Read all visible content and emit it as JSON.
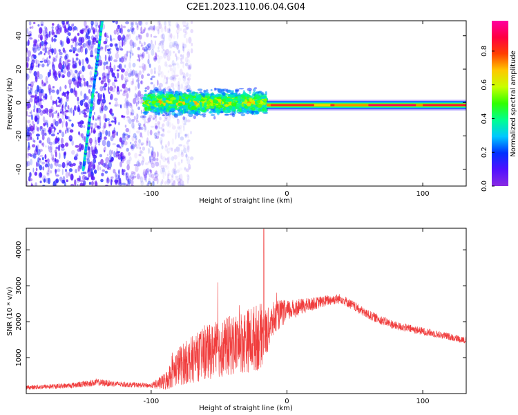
{
  "figure_title": "C2E1.2023.110.06.04.G04",
  "colors": {
    "snr_line": "#f03c3c",
    "axis": "#000000",
    "background": "#ffffff"
  },
  "colorbar": {
    "label": "Normalized spectral amplitude",
    "ticks": [
      "0.0",
      "0.2",
      "0.4",
      "0.6",
      "0.8"
    ],
    "tick_values": [
      0.0,
      0.2,
      0.4,
      0.6,
      0.8
    ],
    "range": [
      0,
      0.98
    ],
    "colormap": "gist_rainbow_r (purple → blue → cyan → green → yellow → orange → red → magenta)"
  },
  "chart_data": [
    {
      "type": "heatmap",
      "title": "C2E1.2023.110.06.04.G04",
      "xlabel": "Height of straight line (km)",
      "ylabel": "Frequency (Hz)",
      "xlim": [
        -192,
        132
      ],
      "ylim": [
        -50,
        49
      ],
      "x_ticks": [
        -100,
        0,
        100
      ],
      "y_ticks": [
        -40,
        -20,
        0,
        20,
        40
      ],
      "grid": false,
      "value_label": "Normalized spectral amplitude",
      "features": [
        {
          "name": "broadband noise",
          "x_range": [
            -192,
            -95
          ],
          "freq_range": [
            -50,
            49
          ],
          "amplitude": 0.15
        },
        {
          "name": "tilted streak",
          "x_start": -150,
          "freq_start": -40,
          "x_end": -136,
          "freq_end": 49,
          "amplitude": 0.3
        },
        {
          "name": "turbulent band",
          "x_range": [
            -105,
            -15
          ],
          "freq_center": 0,
          "freq_halfwidth": 7,
          "amplitude": 0.45
        },
        {
          "name": "steady tone",
          "x_range": [
            -15,
            132
          ],
          "freq_center": -1.5,
          "freq_halfwidth": 2,
          "amplitude": 0.95
        }
      ]
    },
    {
      "type": "line",
      "xlabel": "Height of straight line (km)",
      "ylabel": "SNR (10 * v/v)",
      "xlim": [
        -192,
        132
      ],
      "ylim": [
        0,
        4600
      ],
      "x_ticks": [
        -100,
        0,
        100
      ],
      "y_ticks": [
        1000,
        2000,
        3000,
        4000
      ],
      "grid": false,
      "envelope": {
        "x": [
          -192,
          -160,
          -140,
          -120,
          -100,
          -90,
          -80,
          -60,
          -40,
          -20,
          -15,
          -10,
          -5,
          0,
          10,
          20,
          30,
          40,
          60,
          80,
          100,
          120,
          132
        ],
        "base": [
          150,
          200,
          280,
          230,
          200,
          250,
          600,
          900,
          1100,
          1300,
          1500,
          1900,
          2100,
          2200,
          2350,
          2450,
          2550,
          2600,
          2150,
          1850,
          1700,
          1550,
          1450
        ],
        "noise": [
          120,
          150,
          200,
          150,
          130,
          500,
          1100,
          1500,
          1700,
          1900,
          1300,
          1000,
          800,
          600,
          450,
          350,
          300,
          280,
          260,
          240,
          220,
          200,
          200
        ]
      },
      "peak_value": 4580,
      "peak_x": -17
    }
  ]
}
